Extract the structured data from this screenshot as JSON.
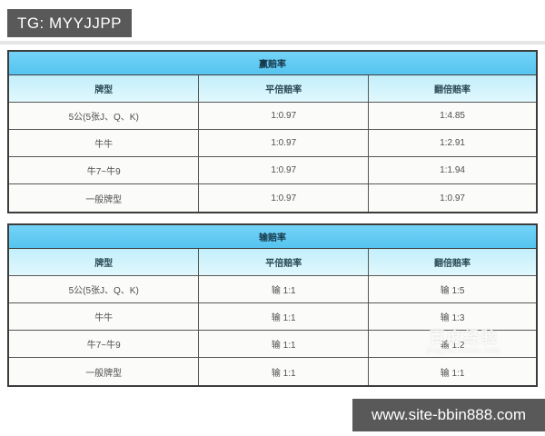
{
  "page": {
    "tg_label": "TG: MYYJJPP",
    "site_label": "www.site-bbin888.com",
    "watermark_main": "百度经验",
    "watermark_sub": "jingyan.baidu.com",
    "colors": {
      "title_blue": "#5cc7f1",
      "header_light_blue": "#cdf2fc",
      "overlay_gray": "#595959",
      "border_dark": "#3c3c3c",
      "row_bg": "#fbfbf9"
    }
  },
  "tables": [
    {
      "title": "赢赔率",
      "headers": [
        "牌型",
        "平倍赔率",
        "翻倍赔率"
      ],
      "rows": [
        [
          "5公(5张J、Q、K)",
          "1:0.97",
          "1:4.85"
        ],
        [
          "牛牛",
          "1:0.97",
          "1:2.91"
        ],
        [
          "牛7~牛9",
          "1:0.97",
          "1:1.94"
        ],
        [
          "一般牌型",
          "1:0.97",
          "1:0.97"
        ]
      ]
    },
    {
      "title": "输赔率",
      "headers": [
        "牌型",
        "平倍赔率",
        "翻倍赔率"
      ],
      "rows": [
        [
          "5公(5张J、Q、K)",
          "输 1:1",
          "输 1:5"
        ],
        [
          "牛牛",
          "输 1:1",
          "输 1:3"
        ],
        [
          "牛7~牛9",
          "输 1:1",
          "输 1:2"
        ],
        [
          "一般牌型",
          "输 1:1",
          "输 1:1"
        ]
      ]
    }
  ]
}
